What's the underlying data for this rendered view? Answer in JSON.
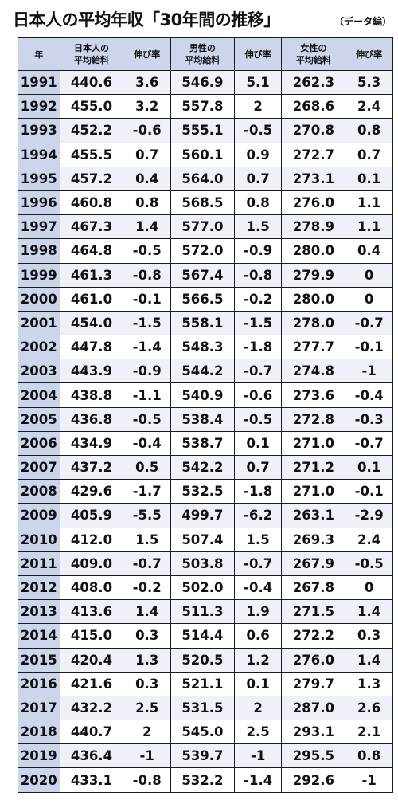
{
  "title": "日本人の平均年収「30年間の推移」",
  "subtitle": "（データ編）",
  "headers": {
    "year": "年",
    "all_avg": "日本人の\n平均給料",
    "all_rate": "伸び率",
    "male_avg": "男性の\n平均給料",
    "male_rate": "伸び率",
    "female_avg": "女性の\n平均給料",
    "female_rate": "伸び率"
  },
  "rows": [
    [
      "1991",
      "440.6",
      "3.6",
      "546.9",
      "5.1",
      "262.3",
      "5.3"
    ],
    [
      "1992",
      "455.0",
      "3.2",
      "557.8",
      "2",
      "268.6",
      "2.4"
    ],
    [
      "1993",
      "452.2",
      "-0.6",
      "555.1",
      "-0.5",
      "270.8",
      "0.8"
    ],
    [
      "1994",
      "455.5",
      "0.7",
      "560.1",
      "0.9",
      "272.7",
      "0.7"
    ],
    [
      "1995",
      "457.2",
      "0.4",
      "564.0",
      "0.7",
      "273.1",
      "0.1"
    ],
    [
      "1996",
      "460.8",
      "0.8",
      "568.5",
      "0.8",
      "276.0",
      "1.1"
    ],
    [
      "1997",
      "467.3",
      "1.4",
      "577.0",
      "1.5",
      "278.9",
      "1.1"
    ],
    [
      "1998",
      "464.8",
      "-0.5",
      "572.0",
      "-0.9",
      "280.0",
      "0.4"
    ],
    [
      "1999",
      "461.3",
      "-0.8",
      "567.4",
      "-0.8",
      "279.9",
      "0"
    ],
    [
      "2000",
      "461.0",
      "-0.1",
      "566.5",
      "-0.2",
      "280.0",
      "0"
    ],
    [
      "2001",
      "454.0",
      "-1.5",
      "558.1",
      "-1.5",
      "278.0",
      "-0.7"
    ],
    [
      "2002",
      "447.8",
      "-1.4",
      "548.3",
      "-1.8",
      "277.7",
      "-0.1"
    ],
    [
      "2003",
      "443.9",
      "-0.9",
      "544.2",
      "-0.7",
      "274.8",
      "-1"
    ],
    [
      "2004",
      "438.8",
      "-1.1",
      "540.9",
      "-0.6",
      "273.6",
      "-0.4"
    ],
    [
      "2005",
      "436.8",
      "-0.5",
      "538.4",
      "-0.5",
      "272.8",
      "-0.3"
    ],
    [
      "2006",
      "434.9",
      "-0.4",
      "538.7",
      "0.1",
      "271.0",
      "-0.7"
    ],
    [
      "2007",
      "437.2",
      "0.5",
      "542.2",
      "0.7",
      "271.2",
      "0.1"
    ],
    [
      "2008",
      "429.6",
      "-1.7",
      "532.5",
      "-1.8",
      "271.0",
      "-0.1"
    ],
    [
      "2009",
      "405.9",
      "-5.5",
      "499.7",
      "-6.2",
      "263.1",
      "-2.9"
    ],
    [
      "2010",
      "412.0",
      "1.5",
      "507.4",
      "1.5",
      "269.3",
      "2.4"
    ],
    [
      "2011",
      "409.0",
      "-0.7",
      "503.8",
      "-0.7",
      "267.9",
      "-0.5"
    ],
    [
      "2012",
      "408.0",
      "-0.2",
      "502.0",
      "-0.4",
      "267.8",
      "0"
    ],
    [
      "2013",
      "413.6",
      "1.4",
      "511.3",
      "1.9",
      "271.5",
      "1.4"
    ],
    [
      "2014",
      "415.0",
      "0.3",
      "514.4",
      "0.6",
      "272.2",
      "0.3"
    ],
    [
      "2015",
      "420.4",
      "1.3",
      "520.5",
      "1.2",
      "276.0",
      "1.4"
    ],
    [
      "2016",
      "421.6",
      "0.3",
      "521.1",
      "0.1",
      "279.7",
      "1.3"
    ],
    [
      "2017",
      "432.2",
      "2.5",
      "531.5",
      "2",
      "287.0",
      "2.6"
    ],
    [
      "2018",
      "440.7",
      "2",
      "545.0",
      "2.5",
      "293.1",
      "2.1"
    ],
    [
      "2019",
      "436.4",
      "-1",
      "539.7",
      "-1",
      "295.5",
      "0.8"
    ],
    [
      "2020",
      "433.1",
      "-0.8",
      "532.2",
      "-1.4",
      "292.6",
      "-1"
    ]
  ],
  "colors": {
    "header_bg": "#cdd5ea",
    "year_bg": "#cdd5ea",
    "stripe_bg": "#eef1f8",
    "border": "#1a1a1a"
  }
}
